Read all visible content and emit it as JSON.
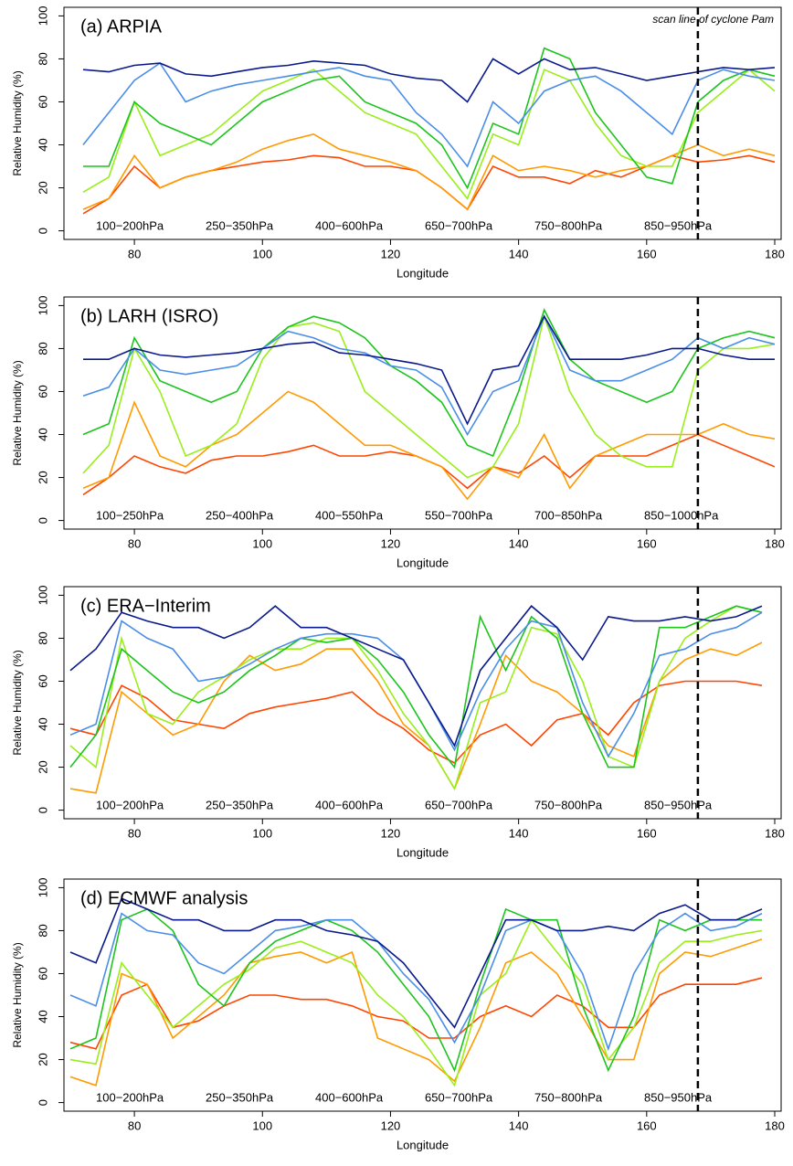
{
  "chart_data": [
    {
      "type": "line",
      "title": "(a)  ARPIA",
      "annotation": "scan line of cyclone Pam",
      "scan_line": 168,
      "xlabel": "Longitude",
      "ylabel": "Relative Humidity (%)",
      "xlim": [
        69,
        181
      ],
      "ylim": [
        -4,
        104
      ],
      "xticks": [
        80,
        100,
        120,
        140,
        160,
        180
      ],
      "yticks": [
        0,
        20,
        40,
        60,
        80,
        100
      ],
      "x": [
        72,
        76,
        80,
        84,
        88,
        92,
        96,
        100,
        104,
        108,
        112,
        116,
        120,
        124,
        128,
        132,
        136,
        140,
        144,
        148,
        152,
        156,
        160,
        164,
        168,
        172,
        176,
        180
      ],
      "series": [
        {
          "name": "100−200hPa",
          "color": "#ff4500",
          "values": [
            8,
            15,
            30,
            20,
            25,
            28,
            30,
            32,
            33,
            35,
            34,
            30,
            30,
            28,
            20,
            10,
            30,
            25,
            25,
            22,
            28,
            25,
            30,
            35,
            32,
            33,
            35,
            32
          ]
        },
        {
          "name": "250−350hPa",
          "color": "#ff9a00",
          "values": [
            10,
            15,
            35,
            20,
            25,
            28,
            32,
            38,
            42,
            45,
            38,
            35,
            32,
            28,
            20,
            10,
            35,
            28,
            30,
            28,
            25,
            28,
            30,
            35,
            40,
            35,
            38,
            35
          ]
        },
        {
          "name": "400−600hPa",
          "color": "#9aee1a",
          "values": [
            18,
            25,
            60,
            35,
            40,
            45,
            55,
            65,
            70,
            75,
            65,
            55,
            50,
            45,
            30,
            15,
            45,
            40,
            75,
            70,
            50,
            35,
            30,
            30,
            55,
            65,
            75,
            65
          ]
        },
        {
          "name": "650−700hPa",
          "color": "#1cc41c",
          "values": [
            30,
            30,
            60,
            50,
            45,
            40,
            50,
            60,
            65,
            70,
            72,
            60,
            55,
            50,
            40,
            20,
            50,
            45,
            85,
            80,
            55,
            40,
            25,
            22,
            60,
            70,
            75,
            72
          ]
        },
        {
          "name": "750−800hPa",
          "color": "#4a8ee8",
          "values": [
            40,
            55,
            70,
            78,
            60,
            65,
            68,
            70,
            72,
            74,
            76,
            72,
            70,
            55,
            45,
            30,
            60,
            50,
            65,
            70,
            72,
            65,
            55,
            45,
            70,
            75,
            72,
            70
          ]
        },
        {
          "name": "850−950hPa",
          "color": "#0a1a8c",
          "values": [
            75,
            74,
            77,
            78,
            73,
            72,
            74,
            76,
            77,
            79,
            78,
            77,
            73,
            71,
            70,
            60,
            80,
            73,
            80,
            75,
            76,
            73,
            70,
            72,
            74,
            76,
            75,
            76
          ]
        }
      ]
    },
    {
      "type": "line",
      "title": "(b)  LARH (ISRO)",
      "scan_line": 168,
      "xlabel": "Longitude",
      "ylabel": "Relative Humidity (%)",
      "xlim": [
        69,
        181
      ],
      "ylim": [
        -4,
        104
      ],
      "xticks": [
        80,
        100,
        120,
        140,
        160,
        180
      ],
      "yticks": [
        0,
        20,
        40,
        60,
        80,
        100
      ],
      "x": [
        72,
        76,
        80,
        84,
        88,
        92,
        96,
        100,
        104,
        108,
        112,
        116,
        120,
        124,
        128,
        132,
        136,
        140,
        144,
        148,
        152,
        156,
        160,
        164,
        168,
        172,
        176,
        180
      ],
      "series": [
        {
          "name": "100−250hPa",
          "color": "#ff4500",
          "values": [
            12,
            20,
            30,
            25,
            22,
            28,
            30,
            30,
            32,
            35,
            30,
            30,
            32,
            30,
            25,
            15,
            25,
            22,
            30,
            20,
            30,
            30,
            30,
            35,
            40,
            35,
            30,
            25
          ]
        },
        {
          "name": "250−400hPa",
          "color": "#ff9a00",
          "values": [
            15,
            20,
            55,
            30,
            25,
            35,
            40,
            50,
            60,
            55,
            45,
            35,
            35,
            30,
            25,
            10,
            25,
            20,
            40,
            15,
            30,
            35,
            40,
            40,
            40,
            45,
            40,
            38
          ]
        },
        {
          "name": "400−550hPa",
          "color": "#9aee1a",
          "values": [
            22,
            35,
            80,
            60,
            30,
            35,
            45,
            75,
            90,
            92,
            88,
            60,
            50,
            40,
            30,
            20,
            25,
            45,
            95,
            60,
            40,
            30,
            25,
            25,
            70,
            80,
            80,
            82
          ]
        },
        {
          "name": "550−700hPa",
          "color": "#1cc41c",
          "values": [
            40,
            45,
            85,
            65,
            60,
            55,
            60,
            80,
            90,
            95,
            92,
            85,
            72,
            65,
            55,
            35,
            30,
            60,
            98,
            75,
            65,
            60,
            55,
            60,
            80,
            85,
            88,
            85
          ]
        },
        {
          "name": "700−850hPa",
          "color": "#4a8ee8",
          "values": [
            58,
            62,
            80,
            70,
            68,
            70,
            72,
            80,
            88,
            85,
            80,
            78,
            72,
            70,
            62,
            40,
            60,
            65,
            95,
            70,
            65,
            65,
            70,
            75,
            85,
            80,
            85,
            82
          ]
        },
        {
          "name": "850−1000hPa",
          "color": "#0a1a8c",
          "values": [
            75,
            75,
            80,
            77,
            76,
            77,
            78,
            80,
            82,
            83,
            78,
            77,
            75,
            73,
            70,
            45,
            70,
            72,
            95,
            75,
            75,
            75,
            77,
            80,
            80,
            77,
            75,
            75
          ]
        }
      ]
    },
    {
      "type": "line",
      "title": "(c)  ERA−Interim",
      "scan_line": 168,
      "xlabel": "Longitude",
      "ylabel": "Relative Humidity (%)",
      "xlim": [
        69,
        181
      ],
      "ylim": [
        -4,
        104
      ],
      "xticks": [
        80,
        100,
        120,
        140,
        160,
        180
      ],
      "yticks": [
        0,
        20,
        40,
        60,
        80,
        100
      ],
      "x": [
        70,
        74,
        78,
        82,
        86,
        90,
        94,
        98,
        102,
        106,
        110,
        114,
        118,
        122,
        126,
        130,
        134,
        138,
        142,
        146,
        150,
        154,
        158,
        162,
        166,
        170,
        174,
        178
      ],
      "series": [
        {
          "name": "100−200hPa",
          "color": "#ff4500",
          "values": [
            38,
            35,
            58,
            52,
            42,
            40,
            38,
            45,
            48,
            50,
            52,
            55,
            45,
            38,
            28,
            22,
            35,
            40,
            30,
            42,
            45,
            35,
            50,
            58,
            60,
            60,
            60,
            58
          ]
        },
        {
          "name": "250−350hPa",
          "color": "#ff9a00",
          "values": [
            10,
            8,
            55,
            45,
            35,
            40,
            60,
            72,
            65,
            68,
            75,
            75,
            60,
            40,
            30,
            10,
            40,
            72,
            60,
            55,
            45,
            30,
            25,
            60,
            70,
            75,
            72,
            78
          ]
        },
        {
          "name": "400−600hPa",
          "color": "#9aee1a",
          "values": [
            30,
            20,
            80,
            45,
            40,
            55,
            62,
            70,
            75,
            75,
            80,
            80,
            65,
            45,
            30,
            10,
            50,
            55,
            85,
            82,
            60,
            25,
            20,
            60,
            80,
            88,
            95,
            92
          ]
        },
        {
          "name": "650−700hPa",
          "color": "#1cc41c",
          "values": [
            20,
            35,
            75,
            65,
            55,
            50,
            55,
            65,
            72,
            80,
            78,
            80,
            70,
            55,
            35,
            20,
            90,
            65,
            90,
            80,
            45,
            20,
            20,
            85,
            85,
            90,
            95,
            92
          ]
        },
        {
          "name": "750−800hPa",
          "color": "#4a8ee8",
          "values": [
            35,
            40,
            88,
            80,
            75,
            60,
            62,
            68,
            75,
            80,
            82,
            82,
            80,
            70,
            50,
            28,
            55,
            75,
            88,
            85,
            50,
            25,
            45,
            72,
            75,
            82,
            85,
            92
          ]
        },
        {
          "name": "850−950hPa",
          "color": "#0a1a8c",
          "values": [
            65,
            75,
            92,
            88,
            85,
            85,
            80,
            85,
            95,
            85,
            85,
            80,
            75,
            70,
            50,
            30,
            65,
            80,
            95,
            85,
            70,
            90,
            88,
            88,
            90,
            88,
            90,
            95
          ]
        }
      ]
    },
    {
      "type": "line",
      "title": "(d)  ECMWF analysis",
      "scan_line": 168,
      "xlabel": "Longitude",
      "ylabel": "Relative Humidity (%)",
      "xlim": [
        69,
        181
      ],
      "ylim": [
        -4,
        104
      ],
      "xticks": [
        80,
        100,
        120,
        140,
        160,
        180
      ],
      "yticks": [
        0,
        20,
        40,
        60,
        80,
        100
      ],
      "x": [
        70,
        74,
        78,
        82,
        86,
        90,
        94,
        98,
        102,
        106,
        110,
        114,
        118,
        122,
        126,
        130,
        134,
        138,
        142,
        146,
        150,
        154,
        158,
        162,
        166,
        170,
        174,
        178
      ],
      "series": [
        {
          "name": "100−200hPa",
          "color": "#ff4500",
          "values": [
            28,
            25,
            50,
            55,
            35,
            38,
            45,
            50,
            50,
            48,
            48,
            45,
            40,
            38,
            30,
            30,
            40,
            45,
            40,
            50,
            45,
            35,
            35,
            50,
            55,
            55,
            55,
            58
          ]
        },
        {
          "name": "250−350hPa",
          "color": "#ff9a00",
          "values": [
            12,
            8,
            60,
            55,
            30,
            40,
            50,
            65,
            68,
            70,
            65,
            70,
            30,
            25,
            20,
            10,
            35,
            65,
            70,
            60,
            40,
            20,
            20,
            60,
            70,
            68,
            72,
            76
          ]
        },
        {
          "name": "400−600hPa",
          "color": "#9aee1a",
          "values": [
            20,
            18,
            65,
            50,
            35,
            45,
            55,
            62,
            72,
            75,
            70,
            65,
            50,
            40,
            25,
            8,
            50,
            60,
            85,
            70,
            55,
            20,
            35,
            65,
            75,
            75,
            78,
            80
          ]
        },
        {
          "name": "650−700hPa",
          "color": "#1cc41c",
          "values": [
            25,
            30,
            85,
            90,
            80,
            55,
            45,
            65,
            75,
            80,
            85,
            80,
            70,
            55,
            40,
            15,
            55,
            90,
            85,
            85,
            45,
            15,
            40,
            85,
            80,
            85,
            85,
            85
          ]
        },
        {
          "name": "750−800hPa",
          "color": "#4a8ee8",
          "values": [
            50,
            45,
            88,
            80,
            78,
            65,
            60,
            70,
            80,
            82,
            85,
            85,
            75,
            60,
            48,
            28,
            50,
            80,
            85,
            80,
            60,
            25,
            60,
            80,
            88,
            80,
            82,
            88
          ]
        },
        {
          "name": "850−950hPa",
          "color": "#0a1a8c",
          "values": [
            70,
            65,
            95,
            90,
            85,
            85,
            80,
            80,
            85,
            85,
            80,
            78,
            75,
            65,
            50,
            35,
            60,
            85,
            85,
            80,
            80,
            82,
            80,
            88,
            92,
            85,
            85,
            90
          ]
        }
      ]
    }
  ]
}
